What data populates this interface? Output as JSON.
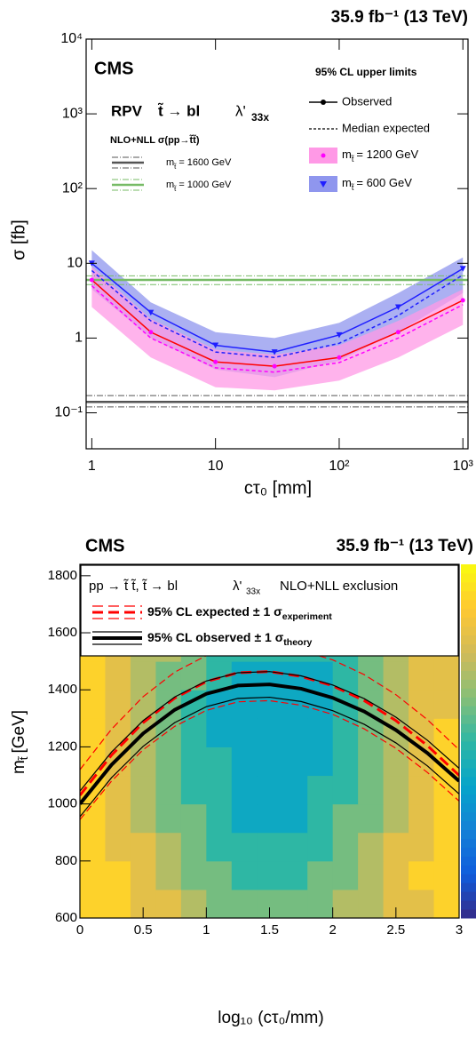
{
  "chart_data": [
    {
      "type": "line",
      "log_x": true,
      "log_y": true,
      "title": "CMS",
      "lumi": "35.9 fb⁻¹ (13 TeV)",
      "x_label": "cτ₀ [mm]",
      "y_label": "σ [fb]",
      "model_parts": [
        "RPV",
        "t̃ → bl",
        "λ'",
        "33x"
      ],
      "theory_title": "NLO+NLL σ(pp→t̃t̃)",
      "legend_title": "95% CL upper limits",
      "observed_label": "Observed",
      "expected_label": "Median expected",
      "x": [
        1,
        3,
        10,
        30,
        100,
        300,
        1000
      ],
      "limits": [
        {
          "label_parts": [
            "m",
            "t̃",
            "= 600 GeV"
          ],
          "color": "#1f1fff",
          "expected_color": "#1f1fff",
          "marker_color": "#1f1fff",
          "band_color": "#8f96ee",
          "marker": "triangle",
          "observed": [
            10,
            2.2,
            0.8,
            0.65,
            1.1,
            2.6,
            8.5
          ],
          "expected": [
            8,
            1.7,
            0.65,
            0.55,
            0.85,
            2.0,
            7
          ],
          "expected_up": [
            15,
            3,
            1.2,
            1.0,
            1.6,
            4,
            12
          ],
          "expected_down": [
            4.5,
            1.0,
            0.38,
            0.3,
            0.5,
            1.2,
            4
          ]
        },
        {
          "label_parts": [
            "m",
            "t̃",
            "= 1200 GeV"
          ],
          "color": "#ff0000",
          "expected_color": "#ff00ff",
          "marker_color": "#ff00ff",
          "band_color": "#ff99e6",
          "marker": "circle",
          "observed": [
            6,
            1.2,
            0.48,
            0.42,
            0.55,
            1.2,
            3.2
          ],
          "expected": [
            5,
            1.0,
            0.4,
            0.35,
            0.47,
            1.0,
            2.8
          ],
          "expected_up": [
            9,
            1.8,
            0.7,
            0.6,
            0.8,
            1.7,
            4.5
          ],
          "expected_down": [
            2.6,
            0.55,
            0.22,
            0.2,
            0.27,
            0.55,
            1.5
          ]
        }
      ],
      "theory": [
        {
          "label_parts": [
            "m",
            "t̃",
            "= 1600 GeV"
          ],
          "color": "#555555",
          "value": 0.14,
          "up": 0.17,
          "down": 0.12
        },
        {
          "label_parts": [
            "m",
            "t̃",
            "= 1000 GeV"
          ],
          "color": "#77bb66",
          "value": 6,
          "up": 6.8,
          "down": 5.2
        }
      ],
      "xlim": [
        0.9,
        1100
      ],
      "ylim": [
        0.033,
        10000
      ],
      "xticks": [
        1,
        10,
        {
          "value": 100,
          "label": "10²"
        },
        {
          "value": 1000,
          "label": "10³"
        }
      ],
      "yticks": [
        {
          "value": 0.1,
          "label": "10⁻¹"
        },
        1,
        10,
        {
          "value": 100,
          "label": "10²"
        },
        {
          "value": 1000,
          "label": "10³"
        },
        {
          "value": 10000,
          "label": "10⁴"
        }
      ]
    },
    {
      "type": "heatmap",
      "title": "CMS",
      "lumi": "35.9 fb⁻¹ (13 TeV)",
      "x_label": "log₁₀ (cτ₀/mm)",
      "y_label_parts": [
        "m",
        "t̃",
        "[GeV]"
      ],
      "header_parts": [
        "pp → t̃ t̃,  t̃ → bl",
        "λ'",
        "33x",
        "NLO+NLL exclusion"
      ],
      "xbins": [
        0,
        0.2,
        0.4,
        0.6,
        0.8,
        1.0,
        1.2,
        1.4,
        1.6,
        1.8,
        2.0,
        2.2,
        2.4,
        2.6,
        2.8,
        3.0
      ],
      "ybins": [
        600,
        700,
        800,
        900,
        1000,
        1100,
        1200,
        1300,
        1400,
        1500,
        1600,
        1700,
        1800
      ],
      "z": [
        [
          9,
          9,
          8,
          8,
          7,
          6,
          6,
          6,
          6,
          6,
          7,
          7,
          8,
          8,
          9
        ],
        [
          9,
          9,
          8,
          7,
          6,
          6,
          5,
          5,
          5,
          6,
          6,
          7,
          8,
          9,
          9
        ],
        [
          9,
          8,
          8,
          7,
          6,
          5,
          5,
          5,
          5,
          5,
          6,
          7,
          8,
          8,
          9
        ],
        [
          9,
          8,
          7,
          6,
          6,
          5,
          4,
          4,
          4,
          5,
          6,
          6,
          7,
          8,
          9
        ],
        [
          9,
          8,
          7,
          6,
          5,
          5,
          4,
          4,
          4,
          5,
          5,
          6,
          7,
          8,
          9
        ],
        [
          9,
          8,
          7,
          6,
          5,
          5,
          4,
          4,
          4,
          4,
          5,
          6,
          7,
          8,
          9
        ],
        [
          9,
          8,
          7,
          6,
          5,
          4,
          4,
          4,
          4,
          4,
          5,
          6,
          7,
          8,
          9
        ],
        [
          9,
          8,
          7,
          6,
          5,
          4,
          4,
          4,
          4,
          4,
          5,
          6,
          7,
          8,
          8
        ],
        [
          9,
          8,
          7,
          6,
          6,
          5,
          4,
          4,
          4,
          4,
          5,
          6,
          7,
          8,
          8
        ],
        [
          9,
          8,
          7,
          7,
          6,
          5,
          5,
          5,
          5,
          5,
          5,
          6,
          7,
          8,
          8
        ],
        [
          9,
          9,
          8,
          7,
          6,
          6,
          5,
          5,
          5,
          5,
          6,
          6,
          7,
          8,
          8
        ],
        [
          9,
          9,
          8,
          7,
          7,
          6,
          6,
          6,
          6,
          6,
          6,
          7,
          7,
          8,
          8
        ]
      ],
      "zlim": [
        0,
        10
      ],
      "colormap": [
        "#352a87",
        "#0f5cdd",
        "#1481d6",
        "#06a4ca",
        "#2eb7a4",
        "#87bf77",
        "#d1bb59",
        "#fec832",
        "#f9fb0e"
      ],
      "x": [
        0,
        0.25,
        0.5,
        0.75,
        1,
        1.25,
        1.5,
        1.75,
        2,
        2.25,
        2.5,
        2.75,
        3
      ],
      "contours": [
        {
          "label_parts": [
            "95% CL expected",
            "± 1 σ",
            "experiment"
          ],
          "color": "#ff0000",
          "dashed": true,
          "values": [
            1030,
            1171,
            1285,
            1371,
            1429,
            1460,
            1464,
            1447,
            1414,
            1362,
            1292,
            1204,
            1100
          ],
          "up": [
            1120,
            1262,
            1376,
            1462,
            1520,
            1551,
            1555,
            1538,
            1505,
            1453,
            1383,
            1295,
            1190
          ],
          "down": [
            945,
            1080,
            1190,
            1272,
            1328,
            1358,
            1362,
            1346,
            1314,
            1263,
            1195,
            1110,
            1010
          ]
        },
        {
          "label_parts": [
            "95% CL observed",
            "± 1 σ",
            "theory"
          ],
          "color": "#000000",
          "dashed": false,
          "values": [
            1000,
            1137,
            1247,
            1330,
            1386,
            1415,
            1419,
            1404,
            1372,
            1324,
            1259,
            1178,
            1080
          ],
          "up": [
            1045,
            1182,
            1292,
            1375,
            1431,
            1460,
            1464,
            1449,
            1417,
            1369,
            1304,
            1223,
            1125
          ],
          "down": [
            955,
            1092,
            1202,
            1285,
            1341,
            1370,
            1374,
            1359,
            1327,
            1279,
            1214,
            1133,
            1035
          ]
        }
      ],
      "xlim": [
        0,
        3
      ],
      "ylim": [
        600,
        1840
      ],
      "xticks": [
        0,
        0.5,
        1,
        1.5,
        2,
        2.5,
        3
      ],
      "yticks": [
        600,
        800,
        1000,
        1200,
        1400,
        1600,
        1800
      ]
    }
  ]
}
